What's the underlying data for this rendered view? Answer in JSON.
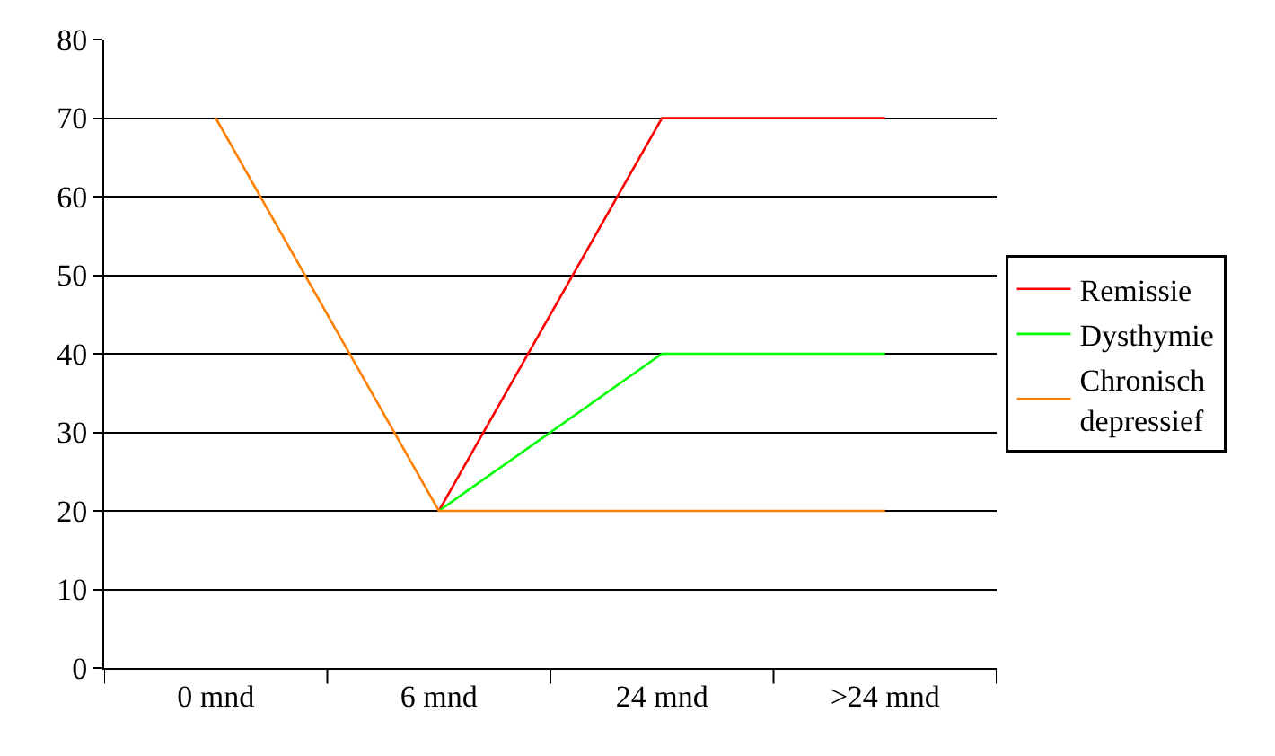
{
  "chart_data": {
    "type": "line",
    "categories": [
      "0 mnd",
      "6 mnd",
      "24 mnd",
      ">24 mnd"
    ],
    "series": [
      {
        "name": "Remissie",
        "color": "#ff0000",
        "values": [
          null,
          20,
          70,
          70
        ]
      },
      {
        "name": "Dysthymie",
        "color": "#00ff00",
        "values": [
          null,
          20,
          40,
          40
        ]
      },
      {
        "name": "Chronisch depressief",
        "color": "#ff8000",
        "values": [
          70,
          20,
          20,
          20
        ]
      }
    ],
    "ylim": [
      0,
      80
    ],
    "yticks": [
      0,
      10,
      20,
      30,
      40,
      50,
      60,
      70,
      80
    ],
    "grid": "y",
    "legend": "right",
    "marker": "none",
    "line_style": "solid"
  }
}
